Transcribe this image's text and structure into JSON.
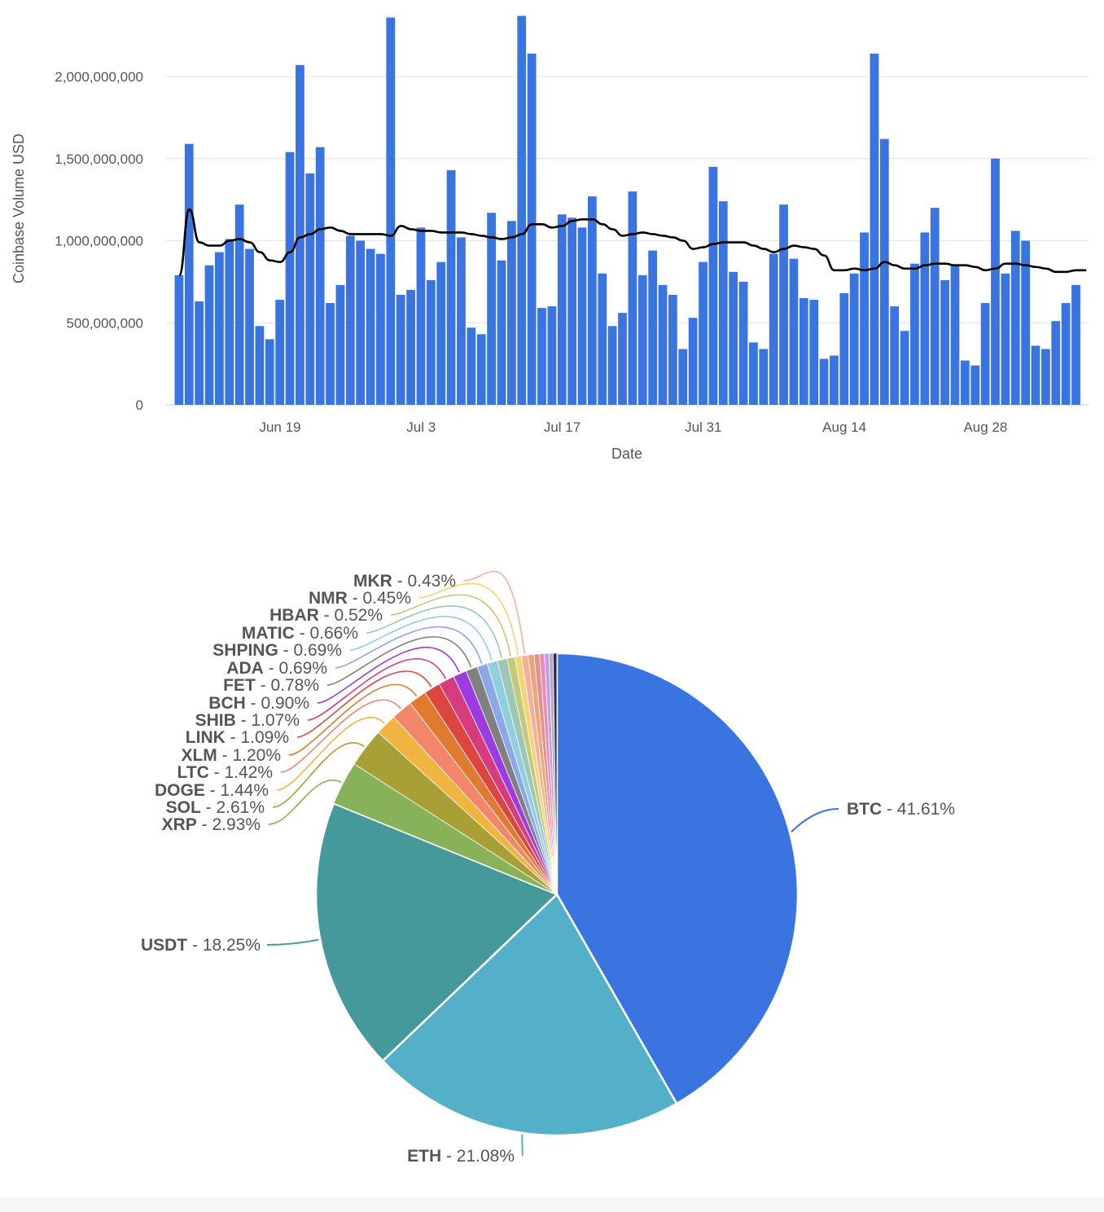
{
  "chart_data": [
    {
      "type": "bar",
      "xlabel": "Date",
      "ylabel": "Coinbase Volume USD",
      "ylim": [
        0,
        2150000000
      ],
      "yticks": [
        0,
        500000000,
        1000000000,
        1500000000,
        2000000000
      ],
      "ytick_labels": [
        "0",
        "500,000,000",
        "1,000,000,000",
        "1,500,000,000",
        "2,000,000,000"
      ],
      "xtick_labels": [
        "Jun 19",
        "Jul 3",
        "Jul 17",
        "Jul 31",
        "Aug 14",
        "Aug 28"
      ],
      "xtick_index": [
        10,
        24,
        38,
        52,
        66,
        80
      ],
      "grid": true,
      "bar_color": "#3a74e0",
      "line_color": "#000000",
      "series": [
        {
          "kind": "bar",
          "values": [
            790000000,
            1590000000,
            630000000,
            850000000,
            930000000,
            1010000000,
            1220000000,
            950000000,
            480000000,
            400000000,
            640000000,
            1540000000,
            2070000000,
            1410000000,
            1570000000,
            620000000,
            730000000,
            1030000000,
            1000000000,
            950000000,
            920000000,
            2360000000,
            670000000,
            700000000,
            1080000000,
            760000000,
            870000000,
            1430000000,
            1020000000,
            470000000,
            430000000,
            1170000000,
            880000000,
            1120000000,
            2370000000,
            2140000000,
            590000000,
            600000000,
            1160000000,
            1140000000,
            1080000000,
            1270000000,
            800000000,
            480000000,
            560000000,
            1300000000,
            790000000,
            940000000,
            730000000,
            670000000,
            340000000,
            530000000,
            870000000,
            1450000000,
            1240000000,
            810000000,
            750000000,
            380000000,
            340000000,
            920000000,
            1220000000,
            890000000,
            650000000,
            640000000,
            280000000,
            300000000,
            680000000,
            800000000,
            1050000000,
            2140000000,
            1620000000,
            600000000,
            450000000,
            860000000,
            1050000000,
            1200000000,
            760000000,
            850000000,
            270000000,
            240000000,
            620000000,
            1500000000,
            800000000,
            1060000000,
            1000000000,
            360000000,
            340000000,
            510000000,
            620000000,
            730000000
          ]
        },
        {
          "kind": "line",
          "values": [
            790000000,
            1190000000,
            990000000,
            970000000,
            970000000,
            1000000000,
            1010000000,
            990000000,
            930000000,
            880000000,
            870000000,
            930000000,
            1020000000,
            1040000000,
            1070000000,
            1080000000,
            1060000000,
            1040000000,
            1040000000,
            1040000000,
            1040000000,
            1030000000,
            1090000000,
            1070000000,
            1060000000,
            1060000000,
            1050000000,
            1050000000,
            1050000000,
            1040000000,
            1030000000,
            1020000000,
            1010000000,
            1020000000,
            1040000000,
            1100000000,
            1100000000,
            1080000000,
            1090000000,
            1120000000,
            1130000000,
            1130000000,
            1100000000,
            1070000000,
            1030000000,
            1040000000,
            1050000000,
            1040000000,
            1030000000,
            1020000000,
            1000000000,
            950000000,
            960000000,
            980000000,
            990000000,
            990000000,
            990000000,
            970000000,
            950000000,
            930000000,
            950000000,
            970000000,
            960000000,
            950000000,
            910000000,
            820000000,
            820000000,
            830000000,
            820000000,
            830000000,
            870000000,
            850000000,
            830000000,
            830000000,
            850000000,
            860000000,
            860000000,
            850000000,
            850000000,
            840000000,
            820000000,
            830000000,
            860000000,
            860000000,
            850000000,
            840000000,
            830000000,
            810000000,
            810000000,
            820000000,
            820000000
          ]
        }
      ]
    },
    {
      "type": "pie",
      "slices": [
        {
          "label": "BTC",
          "value": 41.61,
          "text": "41.61%",
          "color": "#3a74e0"
        },
        {
          "label": "ETH",
          "value": 21.08,
          "text": "21.08%",
          "color": "#53b0c8"
        },
        {
          "label": "USDT",
          "value": 18.25,
          "text": "18.25%",
          "color": "#46999b"
        },
        {
          "label": "XRP",
          "value": 2.93,
          "text": "2.93%",
          "color": "#87b25a"
        },
        {
          "label": "SOL",
          "value": 2.61,
          "text": "2.61%",
          "color": "#a8a036"
        },
        {
          "label": "DOGE",
          "value": 1.44,
          "text": "1.44%",
          "color": "#f0b440"
        },
        {
          "label": "LTC",
          "value": 1.42,
          "text": "1.42%",
          "color": "#f2856a"
        },
        {
          "label": "XLM",
          "value": 1.2,
          "text": "1.20%",
          "color": "#e07a30"
        },
        {
          "label": "LINK",
          "value": 1.09,
          "text": "1.09%",
          "color": "#dd4540"
        },
        {
          "label": "SHIB",
          "value": 1.07,
          "text": "1.07%",
          "color": "#d63b7e"
        },
        {
          "label": "BCH",
          "value": 0.9,
          "text": "0.90%",
          "color": "#9b3be0"
        },
        {
          "label": "FET",
          "value": 0.78,
          "text": "0.78%",
          "color": "#808080"
        },
        {
          "label": "ADA",
          "value": 0.69,
          "text": "0.69%",
          "color": "#8aa8ea"
        },
        {
          "label": "SHPING",
          "value": 0.69,
          "text": "0.69%",
          "color": "#90cfde"
        },
        {
          "label": "MATIC",
          "value": 0.66,
          "text": "0.66%",
          "color": "#9dc7b5"
        },
        {
          "label": "HBAR",
          "value": 0.52,
          "text": "0.52%",
          "color": "#c2c97c"
        },
        {
          "label": "NMR",
          "value": 0.45,
          "text": "0.45%",
          "color": "#f7d276"
        },
        {
          "label": "MKR",
          "value": 0.43,
          "text": "0.43%",
          "color": "#f4b09d"
        },
        {
          "label": "",
          "value": 0.4,
          "text": "",
          "color": "#e8a67a"
        },
        {
          "label": "",
          "value": 0.36,
          "text": "",
          "color": "#e88f8c"
        },
        {
          "label": "",
          "value": 0.33,
          "text": "",
          "color": "#e68fb5"
        },
        {
          "label": "",
          "value": 0.3,
          "text": "",
          "color": "#c49be8"
        },
        {
          "label": "",
          "value": 0.27,
          "text": "",
          "color": "#b0b0b0"
        },
        {
          "label": "",
          "value": 0.25,
          "text": "",
          "color": "#2b2b60"
        }
      ]
    }
  ]
}
